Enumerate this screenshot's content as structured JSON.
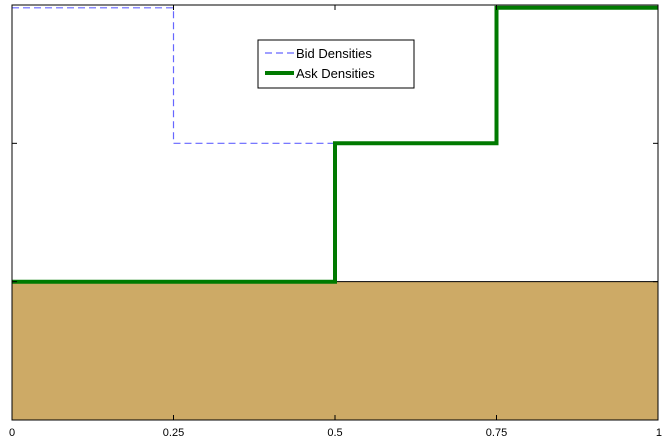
{
  "chart_data": {
    "type": "line",
    "title": "",
    "xlabel": "",
    "ylabel": "",
    "xlim": [
      0,
      1
    ],
    "ylim": [
      0,
      3
    ],
    "grid": false,
    "legend_position": "top-center",
    "x_ticks": [
      0,
      0.25,
      0.5,
      0.75,
      1
    ],
    "x_tick_labels": [
      "0",
      "0.25",
      "0.5",
      "0.75",
      "1"
    ],
    "y_ticks": [
      1,
      2
    ],
    "shaded_region": {
      "y_from": 0,
      "y_to": 1,
      "color": "#cdaa66"
    },
    "series": [
      {
        "name": "Bid Densities",
        "style": "dashed",
        "color": "#6666ff",
        "x": [
          0,
          0.25,
          0.25,
          0.5
        ],
        "y": [
          2.98,
          2.98,
          2,
          2
        ]
      },
      {
        "name": "Ask Densities",
        "style": "solid",
        "color": "#007a00",
        "x": [
          0,
          0.5,
          0.5,
          0.75,
          0.75,
          1
        ],
        "y": [
          1,
          1,
          2,
          2,
          2.98,
          2.98
        ]
      }
    ]
  }
}
